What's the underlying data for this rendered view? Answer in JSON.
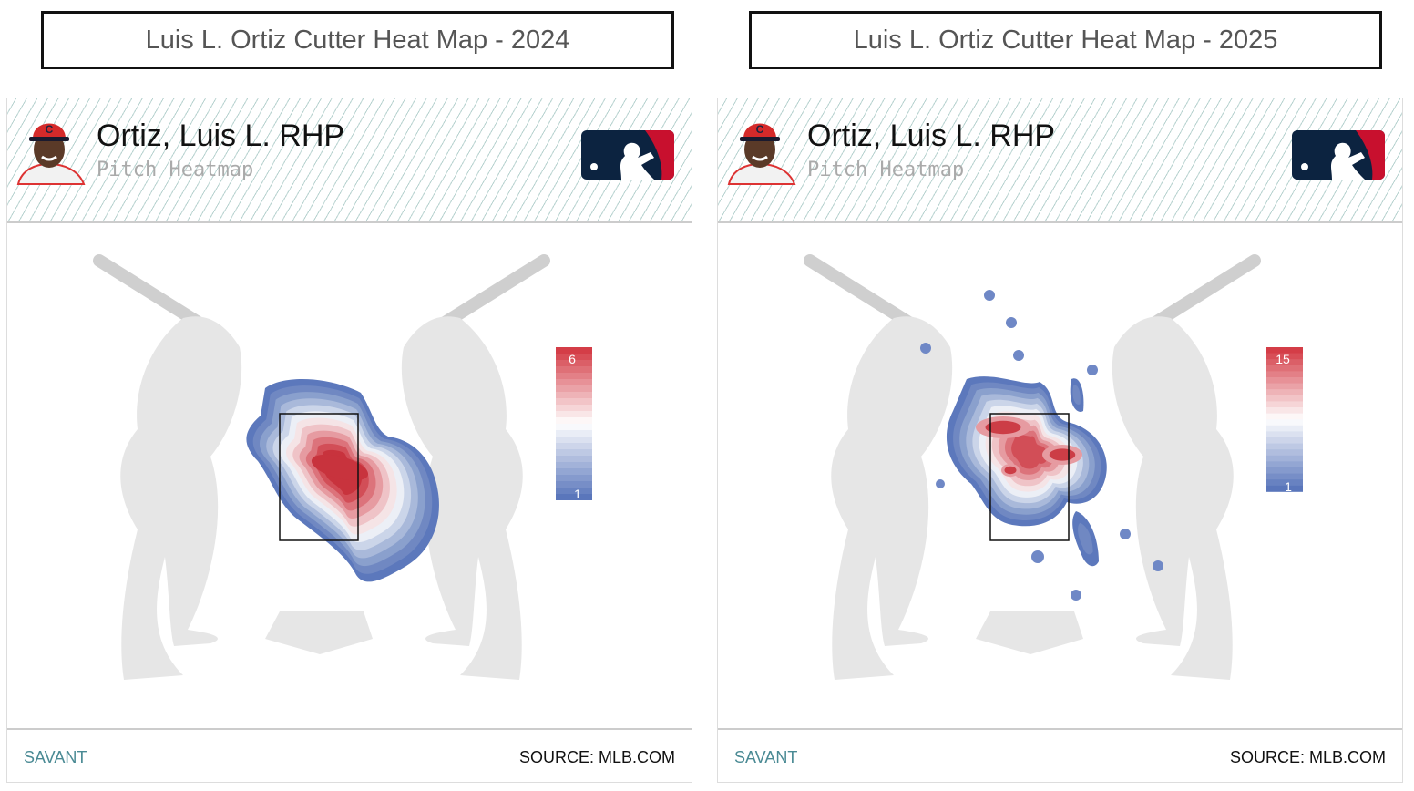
{
  "panels": [
    {
      "title": "Luis L. Ortiz Cutter Heat Map - 2024",
      "player": "Ortiz, Luis L. RHP",
      "subtitle": "Pitch Heatmap",
      "legend_max": "6",
      "legend_min": "1",
      "brand": "SAVANT",
      "source": "SOURCE: MLB.COM"
    },
    {
      "title": "Luis L. Ortiz Cutter Heat Map - 2025",
      "player": "Ortiz, Luis L. RHP",
      "subtitle": "Pitch Heatmap",
      "legend_max": "15",
      "legend_min": "1",
      "brand": "SAVANT",
      "source": "SOURCE: MLB.COM"
    }
  ],
  "chart_data": [
    {
      "type": "heatmap",
      "title": "Luis L. Ortiz Cutter Heat Map - 2024",
      "legend_range": [
        1,
        6
      ],
      "colorscale": [
        "#5a76bb",
        "#ffffff",
        "#d43d47"
      ]
    },
    {
      "type": "heatmap",
      "title": "Luis L. Ortiz Cutter Heat Map - 2025",
      "legend_range": [
        1,
        15
      ],
      "colorscale": [
        "#5a76bb",
        "#ffffff",
        "#d43d47"
      ]
    }
  ],
  "colors": {
    "navy": "#0c2340",
    "red": "#c8102e",
    "silhouette": "#e6e6e6"
  }
}
